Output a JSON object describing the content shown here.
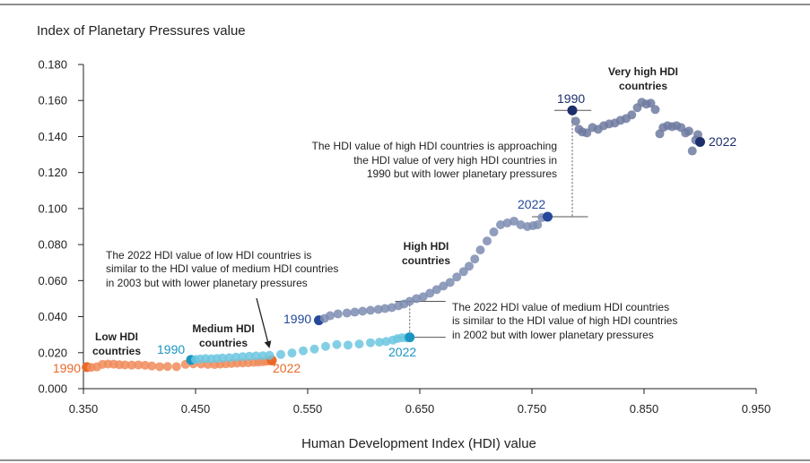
{
  "chart_data": {
    "type": "scatter",
    "title": "",
    "ylabel": "Index of Planetary Pressures value",
    "xlabel": "Human Development Index (HDI) value",
    "xlim": [
      0.35,
      0.95
    ],
    "ylim": [
      0.0,
      0.18
    ],
    "xticks": [
      "0.350",
      "0.450",
      "0.550",
      "0.650",
      "0.750",
      "0.850",
      "0.950"
    ],
    "yticks": [
      "0.000",
      "0.020",
      "0.040",
      "0.060",
      "0.080",
      "0.100",
      "0.120",
      "0.140",
      "0.160",
      "0.180"
    ],
    "colors": {
      "low": "#f08c5c",
      "low_end": "#e86a28",
      "medium": "#6cc7e0",
      "medium_end": "#1a95c2",
      "high": "#7d8cb0",
      "high_end": "#24499b",
      "very_high": "#6e7aa0",
      "very_high_end": "#1d2f6b",
      "annotation_line": "#555555"
    },
    "series": [
      {
        "name": "Low HDI countries",
        "color": "#f08c5c",
        "start_label": "1990",
        "end_label": "2022",
        "x": [
          0.353,
          0.357,
          0.362,
          0.367,
          0.372,
          0.377,
          0.382,
          0.387,
          0.393,
          0.399,
          0.405,
          0.411,
          0.418,
          0.425,
          0.433,
          0.441,
          0.448,
          0.455,
          0.461,
          0.467,
          0.472,
          0.477,
          0.482,
          0.487,
          0.492,
          0.497,
          0.502,
          0.506,
          0.51,
          0.513,
          0.516,
          0.518
        ],
        "y": [
          0.012,
          0.0118,
          0.0121,
          0.0135,
          0.0137,
          0.0136,
          0.0133,
          0.0132,
          0.0131,
          0.0132,
          0.013,
          0.0126,
          0.0122,
          0.0123,
          0.0122,
          0.0135,
          0.0138,
          0.0137,
          0.0135,
          0.0134,
          0.0136,
          0.0138,
          0.014,
          0.0142,
          0.0143,
          0.0144,
          0.0146,
          0.0148,
          0.015,
          0.0152,
          0.0155,
          0.0157
        ]
      },
      {
        "name": "Medium HDI countries",
        "color": "#6cc7e0",
        "start_label": "1990",
        "end_label": "2022",
        "x": [
          0.446,
          0.45,
          0.454,
          0.459,
          0.464,
          0.469,
          0.474,
          0.48,
          0.486,
          0.492,
          0.498,
          0.504,
          0.51,
          0.516,
          0.526,
          0.536,
          0.546,
          0.556,
          0.566,
          0.576,
          0.586,
          0.596,
          0.606,
          0.614,
          0.62,
          0.626,
          0.63,
          0.634,
          0.638,
          0.641
        ],
        "y": [
          0.016,
          0.0162,
          0.0165,
          0.0167,
          0.0166,
          0.0168,
          0.017,
          0.0172,
          0.0175,
          0.0178,
          0.018,
          0.0182,
          0.0183,
          0.0185,
          0.019,
          0.0198,
          0.021,
          0.022,
          0.0235,
          0.0245,
          0.0242,
          0.0248,
          0.0255,
          0.0258,
          0.0262,
          0.027,
          0.0278,
          0.0283,
          0.0282,
          0.0285
        ]
      },
      {
        "name": "High HDI countries",
        "color": "#7d8cb0",
        "start_label": "1990",
        "end_label": "2022",
        "x": [
          0.56,
          0.565,
          0.57,
          0.577,
          0.585,
          0.592,
          0.599,
          0.606,
          0.613,
          0.619,
          0.625,
          0.631,
          0.636,
          0.641,
          0.647,
          0.653,
          0.659,
          0.665,
          0.671,
          0.677,
          0.683,
          0.689,
          0.694,
          0.699,
          0.704,
          0.71,
          0.716,
          0.722,
          0.728,
          0.734,
          0.74,
          0.746,
          0.751,
          0.755,
          0.759,
          0.764
        ],
        "y": [
          0.038,
          0.039,
          0.0405,
          0.0415,
          0.042,
          0.0425,
          0.043,
          0.0435,
          0.044,
          0.0445,
          0.045,
          0.046,
          0.047,
          0.0485,
          0.05,
          0.051,
          0.053,
          0.055,
          0.057,
          0.059,
          0.062,
          0.065,
          0.068,
          0.072,
          0.077,
          0.082,
          0.087,
          0.091,
          0.092,
          0.093,
          0.091,
          0.09,
          0.0905,
          0.091,
          0.095,
          0.0955
        ]
      },
      {
        "name": "Very high HDI countries",
        "color": "#6e7aa0",
        "start_label": "1990",
        "end_label": "2022",
        "x": [
          0.786,
          0.789,
          0.792,
          0.795,
          0.799,
          0.804,
          0.809,
          0.814,
          0.819,
          0.824,
          0.829,
          0.834,
          0.839,
          0.844,
          0.848,
          0.852,
          0.856,
          0.86,
          0.864,
          0.867,
          0.871,
          0.875,
          0.879,
          0.883,
          0.887,
          0.89,
          0.893,
          0.896,
          0.898,
          0.9
        ],
        "y": [
          0.1545,
          0.1485,
          0.144,
          0.1425,
          0.142,
          0.145,
          0.144,
          0.146,
          0.147,
          0.1475,
          0.149,
          0.15,
          0.152,
          0.156,
          0.159,
          0.158,
          0.1585,
          0.155,
          0.1415,
          0.145,
          0.146,
          0.1455,
          0.146,
          0.145,
          0.142,
          0.143,
          0.132,
          0.138,
          0.141,
          0.137
        ]
      }
    ],
    "group_labels": {
      "low": [
        "Low HDI",
        "countries"
      ],
      "medium": [
        "Medium HDI",
        "countries"
      ],
      "high": [
        "High HDI",
        "countries"
      ],
      "very_high": [
        "Very high HDI",
        "countries"
      ]
    },
    "annotations": {
      "low_vs_medium": [
        "The 2022 HDI value of low HDI countries is",
        "similar to the HDI value of medium HDI countries",
        "in 2003 but with lower planetary pressures"
      ],
      "medium_vs_high": [
        "The 2022 HDI value of medium HDI countries",
        "is similar to the HDI value of high HDI countries",
        "in 2002 but with lower planetary pressures"
      ],
      "high_vs_very_high": [
        "The HDI value of high HDI countries is approaching",
        "the HDI value of very high HDI countries in",
        "1990 but with lower planetary pressures"
      ]
    }
  }
}
